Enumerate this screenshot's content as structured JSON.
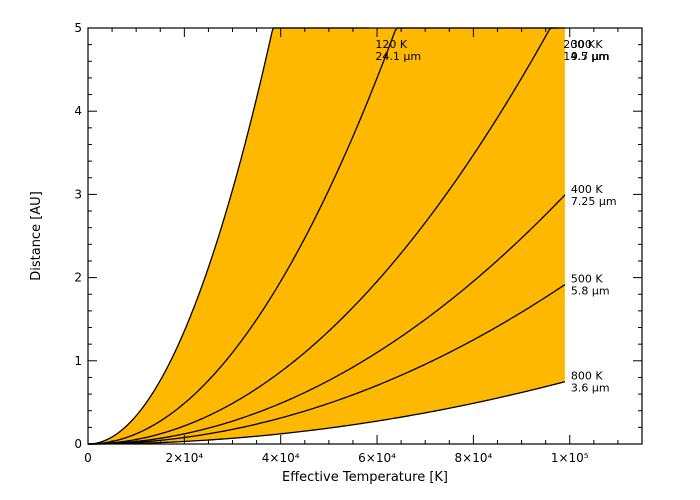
{
  "chart_data": {
    "type": "line",
    "xlabel": "Effective Temperature [K]",
    "ylabel": "Distance [AU]",
    "xlim": [
      0,
      115000
    ],
    "ylim": [
      0,
      5
    ],
    "x_max_data": 99000,
    "fill_color": "#FFB800",
    "grid": false,
    "x_ticks": [
      {
        "value": 0,
        "label": "0"
      },
      {
        "value": 20000,
        "label": "2×10⁴"
      },
      {
        "value": 40000,
        "label": "4×10⁴"
      },
      {
        "value": 60000,
        "label": "6×10⁴"
      },
      {
        "value": 80000,
        "label": "8×10⁴"
      },
      {
        "value": 100000,
        "label": "1×10⁵"
      }
    ],
    "y_ticks": [
      {
        "value": 0,
        "label": "0"
      },
      {
        "value": 1,
        "label": "1"
      },
      {
        "value": 2,
        "label": "2"
      },
      {
        "value": 3,
        "label": "3"
      },
      {
        "value": 4,
        "label": "4"
      },
      {
        "value": 5,
        "label": "5"
      }
    ],
    "series": [
      {
        "temp_label": "120 K",
        "wave_label": "24.1 μm",
        "coef": 0.3395,
        "end_x": 58400
      },
      {
        "temp_label": "200 K",
        "wave_label": "14.5 μm",
        "coef": 0.1222,
        "end_x": 97400
      },
      {
        "temp_label": "300 K",
        "wave_label": "9.7 μm",
        "coef": 0.0543,
        "end_x": 99000
      },
      {
        "temp_label": "400 K",
        "wave_label": "7.25 μm",
        "coef": 0.03055,
        "end_x": 99000
      },
      {
        "temp_label": "500 K",
        "wave_label": "5.8 μm",
        "coef": 0.01955,
        "end_x": 99000
      },
      {
        "temp_label": "800 K",
        "wave_label": "3.6 μm",
        "coef": 0.00764,
        "end_x": 99000
      }
    ]
  }
}
